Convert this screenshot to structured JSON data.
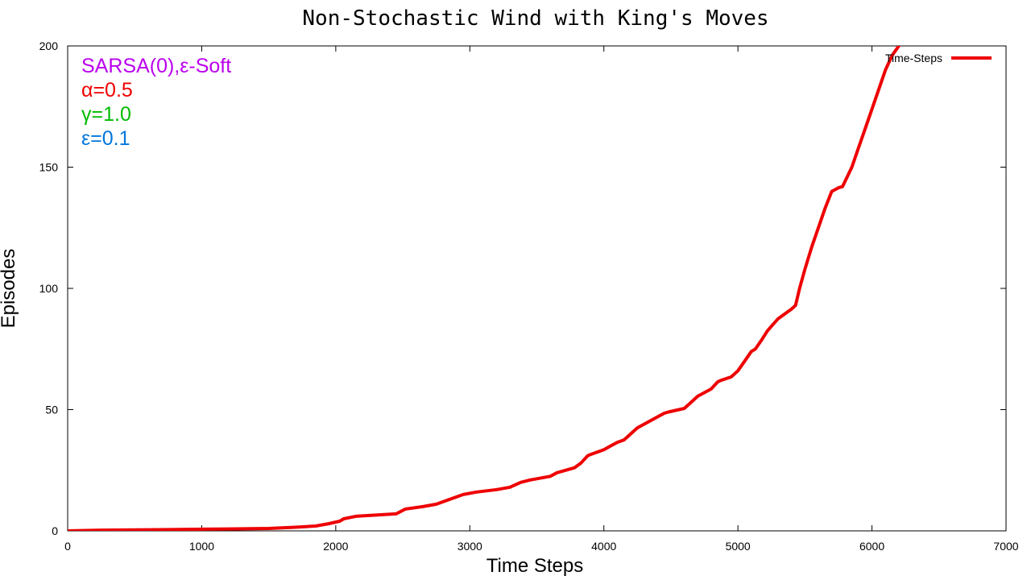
{
  "chart_data": {
    "type": "line",
    "title": "Non-Stochastic Wind with King's Moves",
    "xlabel": "Time Steps",
    "ylabel": "Episodes",
    "xlim": [
      0,
      7000
    ],
    "ylim": [
      0,
      200
    ],
    "xticks": [
      0,
      1000,
      2000,
      3000,
      4000,
      5000,
      6000,
      7000
    ],
    "yticks": [
      0,
      50,
      100,
      150,
      200
    ],
    "grid": false,
    "legend_position": "top-right",
    "annotations": [
      {
        "text": "SARSA(0),ε-Soft",
        "color": "#bb00ee"
      },
      {
        "text": "α=0.5",
        "color": "#ee0000"
      },
      {
        "text": "γ=1.0",
        "color": "#00bb00"
      },
      {
        "text": "ε=0.1",
        "color": "#0077dd"
      }
    ],
    "series": [
      {
        "name": "Time-Steps",
        "color": "#ee0000",
        "x": [
          0,
          250,
          700,
          1200,
          1500,
          1700,
          1850,
          1950,
          2030,
          2060,
          2150,
          2300,
          2450,
          2520,
          2650,
          2750,
          2850,
          2950,
          3050,
          3200,
          3300,
          3380,
          3450,
          3600,
          3650,
          3780,
          3830,
          3880,
          3900,
          3950,
          4000,
          4050,
          4100,
          4150,
          4200,
          4250,
          4300,
          4350,
          4400,
          4450,
          4480,
          4520,
          4600,
          4650,
          4700,
          4750,
          4800,
          4850,
          4870,
          4950,
          5000,
          5050,
          5100,
          5130,
          5180,
          5220,
          5260,
          5300,
          5350,
          5400,
          5430,
          5460,
          5500,
          5550,
          5600,
          5650,
          5700,
          5750,
          5780,
          5850,
          5900,
          5950,
          6000,
          6050,
          6100,
          6150,
          6200,
          6270
        ],
        "y": [
          0,
          0.3,
          0.5,
          0.8,
          1,
          1.5,
          2,
          3,
          4,
          5,
          6,
          6.5,
          7,
          9,
          10,
          11,
          13,
          15,
          16,
          17,
          18,
          20,
          21,
          22.5,
          24,
          26,
          28,
          31,
          31.5,
          32.5,
          33.5,
          35,
          36.5,
          37.5,
          40,
          42.5,
          44,
          45.5,
          47,
          48.5,
          49,
          49.5,
          50.5,
          53,
          55.5,
          57,
          58.5,
          61.5,
          62,
          63.5,
          66,
          70,
          74,
          75,
          79,
          82.5,
          85,
          87.5,
          89.5,
          91.5,
          93,
          100,
          108,
          117,
          125,
          133,
          140,
          141.5,
          142,
          150,
          158,
          166,
          174,
          182,
          190,
          196,
          200,
          204
        ]
      }
    ]
  }
}
